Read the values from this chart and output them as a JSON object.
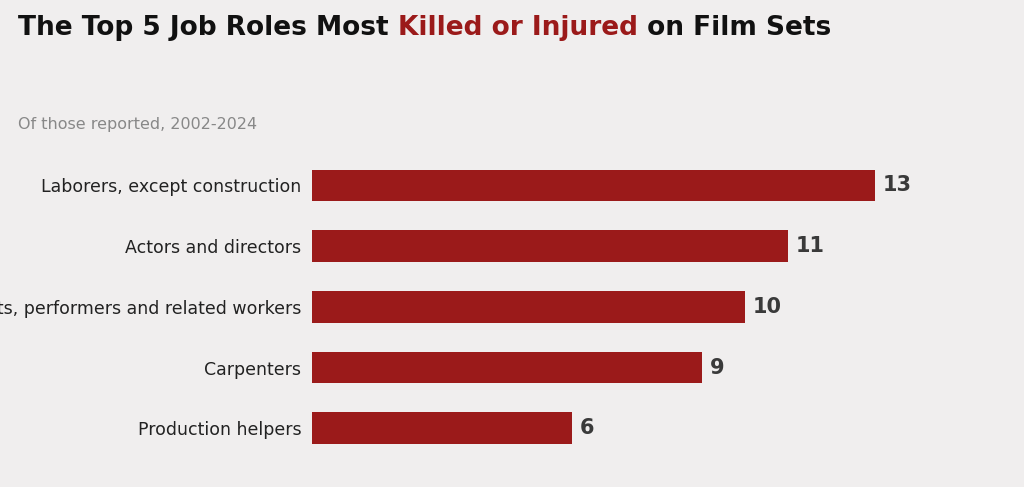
{
  "categories": [
    "Laborers, except construction",
    "Actors and directors",
    "Artists, performers and related workers",
    "Carpenters",
    "Production helpers"
  ],
  "values": [
    13,
    11,
    10,
    9,
    6
  ],
  "bar_color": "#9b1a1a",
  "background_color": "#f0eeee",
  "title_black1": "The Top 5 Job Roles Most ",
  "title_red": "Killed or Injured",
  "title_black2": " on Film Sets",
  "subtitle": "Of those reported, 2002-2024",
  "value_label_color": "#3a3a3a",
  "value_label_fontsize": 15,
  "category_fontsize": 12.5,
  "title_fontsize": 19,
  "subtitle_fontsize": 11.5,
  "xlim": [
    0,
    15.5
  ],
  "bar_height": 0.52
}
